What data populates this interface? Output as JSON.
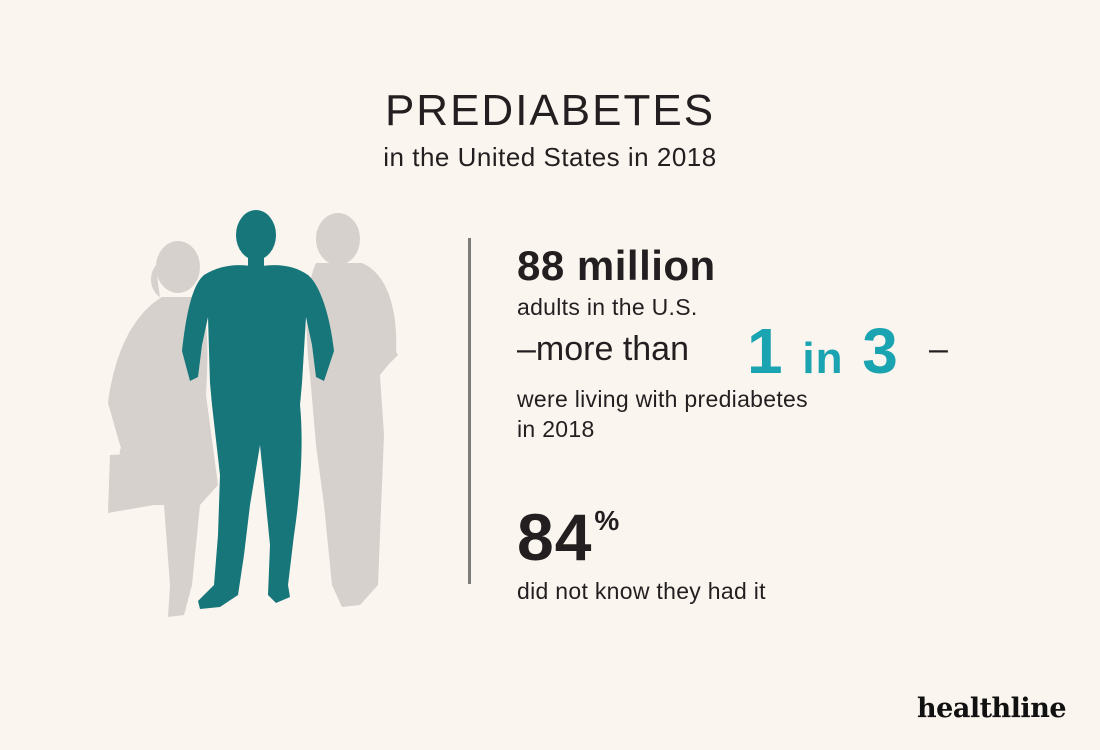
{
  "header": {
    "title": "PREDIABETES",
    "subtitle": "in the United States in 2018"
  },
  "stat_adults": {
    "number": "88 million",
    "line1": "adults in the U.S.",
    "line2_prefix": "–more than",
    "highlight_a": "1",
    "highlight_mid": "in",
    "highlight_b": "3",
    "line2_suffix": "–",
    "line3": "were living with prediabetes",
    "line4": "in 2018"
  },
  "stat_unaware": {
    "number": "84",
    "unit": "%",
    "caption": "did not know they had it"
  },
  "brand": {
    "name": "healthline"
  },
  "colors": {
    "background": "#faf5ef",
    "highlight": "#1aa3b0",
    "featured_figure": "#16767a",
    "background_figures": "#d6d1cc",
    "text": "#231f20"
  }
}
